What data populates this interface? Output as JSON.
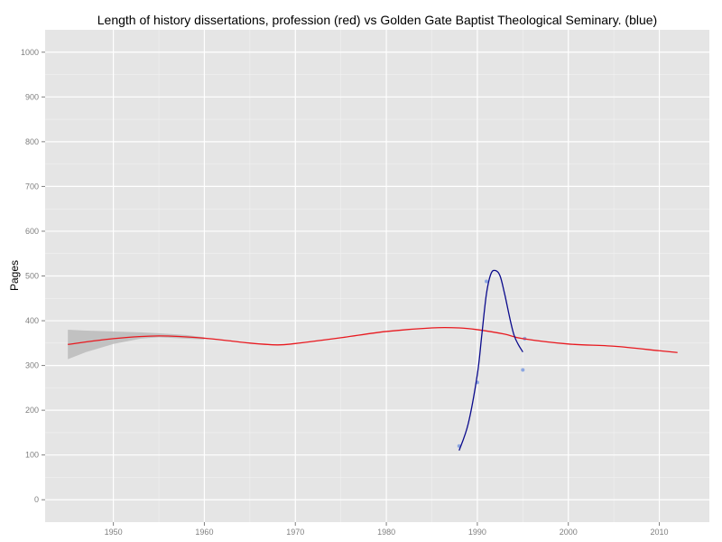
{
  "chart_data": {
    "type": "line",
    "title": "Length of history dissertations, profession (red) vs Golden Gate Baptist Theological Seminary. (blue)",
    "xlabel": "",
    "ylabel": "Pages",
    "xlim": [
      1942.5,
      2015.5
    ],
    "ylim": [
      -50,
      1050
    ],
    "x_ticks": [
      1950,
      1960,
      1970,
      1980,
      1990,
      2000,
      2010
    ],
    "y_ticks": [
      0,
      100,
      200,
      300,
      400,
      500,
      600,
      700,
      800,
      900,
      1000
    ],
    "grid": true,
    "legend": "none",
    "colors": {
      "panel": "#e5e5e5",
      "grid": "#ffffff",
      "profession": "#e8191f",
      "seminary": "#0a0a8c",
      "seminary_points": "#7c9be0",
      "band": "#b8b8b8"
    },
    "series": [
      {
        "color_key": "profession",
        "kind": "smooth",
        "x": [
          1945,
          1950,
          1955,
          1960,
          1965,
          1968,
          1970,
          1975,
          1980,
          1985,
          1988,
          1990,
          1993,
          1995,
          2000,
          2005,
          2010,
          2012
        ],
        "y": [
          347,
          360,
          366,
          361,
          350,
          346,
          349,
          362,
          376,
          384,
          384,
          380,
          370,
          360,
          348,
          343,
          333,
          329
        ],
        "band_x": [
          1945,
          1947,
          1950,
          1953,
          1955,
          1958,
          1960
        ],
        "band_upper": [
          380,
          378,
          376,
          374,
          372,
          368,
          363
        ],
        "band_lower": [
          314,
          330,
          348,
          360,
          363,
          360,
          358
        ]
      },
      {
        "color_key": "seminary",
        "kind": "loess",
        "x": [
          1988,
          1989,
          1990,
          1990.5,
          1991,
          1991.5,
          1992,
          1992.5,
          1993,
          1994,
          1995
        ],
        "y": [
          110,
          170,
          280,
          370,
          460,
          505,
          512,
          500,
          460,
          370,
          330
        ],
        "points_x": [
          1988,
          1990,
          1991,
          1995,
          1995.2
        ],
        "points_y": [
          120,
          262,
          488,
          290,
          360
        ]
      }
    ]
  }
}
